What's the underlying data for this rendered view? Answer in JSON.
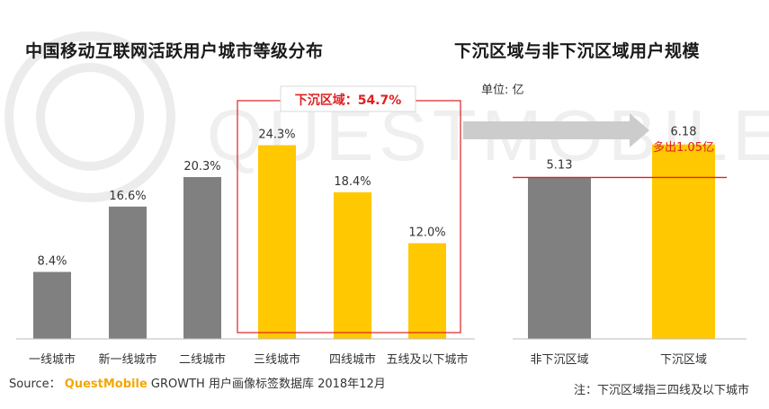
{
  "colors": {
    "gray": "#808080",
    "yellow": "#ffc800",
    "red": "#e02020",
    "arrow": "#cccccc",
    "watermark": "#e9e9e9"
  },
  "watermark_text": "QUESTMOBILE",
  "chart_data": [
    {
      "type": "bar",
      "title": "中国移动互联网活跃用户城市等级分布",
      "categories": [
        "一线城市",
        "新一线城市",
        "二线城市",
        "三线城市",
        "四线城市",
        "五线及以下城市"
      ],
      "values": [
        8.4,
        16.6,
        20.3,
        24.3,
        18.4,
        12.0
      ],
      "value_labels": [
        "8.4%",
        "16.6%",
        "20.3%",
        "24.3%",
        "18.4%",
        "12.0%"
      ],
      "bar_colors": [
        "gray",
        "gray",
        "gray",
        "yellow",
        "yellow",
        "yellow"
      ],
      "xlabel": "",
      "ylabel": "",
      "ylim": [
        0,
        30
      ],
      "grid": false,
      "annotation": "下沉区域：54.7%"
    },
    {
      "type": "bar",
      "title": "下沉区域与非下沉区域用户规模",
      "unit": "单位: 亿",
      "categories": [
        "非下沉区域",
        "下沉区域"
      ],
      "values": [
        5.13,
        6.18
      ],
      "value_labels": [
        "5.13",
        "6.18"
      ],
      "bar_colors": [
        "gray",
        "yellow"
      ],
      "xlabel": "",
      "ylabel": "",
      "ylim": [
        0,
        7.5
      ],
      "grid": false,
      "annotation": "多出1.05亿"
    }
  ],
  "footer": {
    "source_prefix": "Source：",
    "brand": "QuestMobile",
    "source_rest": "GROWTH 用户画像标签数据库 2018年12月",
    "note": "注：下沉区域指三四线及以下城市"
  }
}
